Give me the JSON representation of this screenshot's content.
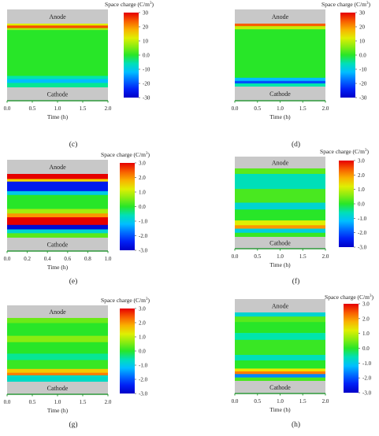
{
  "chart_data": [
    {
      "id": "c",
      "type": "heatmap",
      "caption": "(c)",
      "legend_title": "Space charge (C/m",
      "legend_title_sup": "3",
      "legend_title_end": ")",
      "colorbar_range": [
        -30,
        30
      ],
      "colorbar_ticks": [
        "30",
        "20",
        "10",
        "0.0",
        "-10",
        "-20",
        "-30"
      ],
      "top_label": "Anode",
      "bottom_label": "Cathode",
      "xlabel": "Time (h)",
      "x_ticks": [
        "0.0",
        "0.5",
        "1.0",
        "1.5",
        "2.0"
      ],
      "xlim": [
        0,
        2
      ],
      "bands": [
        {
          "from": 0.0,
          "to": 0.03,
          "v": 12
        },
        {
          "from": 0.03,
          "to": 0.07,
          "v": 25
        },
        {
          "from": 0.07,
          "to": 0.1,
          "v": 8
        },
        {
          "from": 0.1,
          "to": 0.82,
          "v": 0
        },
        {
          "from": 0.82,
          "to": 0.87,
          "v": -5
        },
        {
          "from": 0.87,
          "to": 0.93,
          "v": -12
        },
        {
          "from": 0.93,
          "to": 1.0,
          "v": -4
        }
      ]
    },
    {
      "id": "d",
      "type": "heatmap",
      "caption": "(d)",
      "legend_title": "Space charge (C/m",
      "legend_title_sup": "3",
      "legend_title_end": ")",
      "colorbar_range": [
        -30,
        30
      ],
      "colorbar_ticks": [
        "30",
        "20",
        "10",
        "0.0",
        "-10",
        "-20",
        "-30"
      ],
      "top_label": "Anode",
      "bottom_label": "Cathode",
      "xlabel": "Time (h)",
      "x_ticks": [
        "0.0",
        "0.5",
        "1.0",
        "1.5",
        "2.0"
      ],
      "xlim": [
        0,
        2
      ],
      "bands": [
        {
          "from": 0.0,
          "to": 0.04,
          "v": 24
        },
        {
          "from": 0.04,
          "to": 0.09,
          "v": 10
        },
        {
          "from": 0.09,
          "to": 0.86,
          "v": 0
        },
        {
          "from": 0.86,
          "to": 0.91,
          "v": -12
        },
        {
          "from": 0.91,
          "to": 0.95,
          "v": -20
        },
        {
          "from": 0.95,
          "to": 1.0,
          "v": -5
        }
      ]
    },
    {
      "id": "e",
      "type": "heatmap",
      "caption": "(e)",
      "legend_title": "Space charge (C/m",
      "legend_title_sup": "3",
      "legend_title_end": ")",
      "colorbar_range": [
        -3,
        3
      ],
      "colorbar_ticks": [
        "3.0",
        "2.0",
        "1.0",
        "0.0",
        "-1.0",
        "-2.0",
        "-3.0"
      ],
      "top_label": "Anode",
      "bottom_label": "Cathode",
      "xlabel": "Time (h)",
      "x_ticks": [
        "0.0",
        "0.2",
        "0.4",
        "0.6",
        "0.8",
        "1.0"
      ],
      "xlim": [
        0,
        1
      ],
      "bands": [
        {
          "from": 0.0,
          "to": 0.08,
          "v": 3.0
        },
        {
          "from": 0.08,
          "to": 0.12,
          "v": 1.5
        },
        {
          "from": 0.12,
          "to": 0.27,
          "v": -2.5
        },
        {
          "from": 0.27,
          "to": 0.33,
          "v": -1.0
        },
        {
          "from": 0.33,
          "to": 0.55,
          "v": 0.0
        },
        {
          "from": 0.55,
          "to": 0.62,
          "v": 0.8
        },
        {
          "from": 0.62,
          "to": 0.68,
          "v": 2.0
        },
        {
          "from": 0.68,
          "to": 0.8,
          "v": 3.0
        },
        {
          "from": 0.8,
          "to": 0.87,
          "v": -2.8
        },
        {
          "from": 0.87,
          "to": 0.93,
          "v": -0.8
        },
        {
          "from": 0.93,
          "to": 1.0,
          "v": 0.3
        }
      ]
    },
    {
      "id": "f",
      "type": "heatmap",
      "caption": "(f)",
      "legend_title": "Space charge (C/m",
      "legend_title_sup": "3",
      "legend_title_end": ")",
      "colorbar_range": [
        -3,
        3
      ],
      "colorbar_ticks": [
        "3.0",
        "2.0",
        "1.0",
        "0.0",
        "-1.0",
        "-2.0",
        "-3.0"
      ],
      "top_label": "Anode",
      "bottom_label": "Cathode",
      "xlabel": "Time (h)",
      "x_ticks": [
        "0.0",
        "0.5",
        "1.0",
        "1.5",
        "2.0"
      ],
      "xlim": [
        0,
        2
      ],
      "bands": [
        {
          "from": 0.0,
          "to": 0.08,
          "v": 0.3
        },
        {
          "from": 0.08,
          "to": 0.3,
          "v": -0.6
        },
        {
          "from": 0.3,
          "to": 0.5,
          "v": 0.2
        },
        {
          "from": 0.5,
          "to": 0.6,
          "v": -0.8
        },
        {
          "from": 0.6,
          "to": 0.76,
          "v": 0.0
        },
        {
          "from": 0.76,
          "to": 0.83,
          "v": 1.2
        },
        {
          "from": 0.83,
          "to": 0.88,
          "v": 2.0
        },
        {
          "from": 0.88,
          "to": 0.94,
          "v": -0.9
        },
        {
          "from": 0.94,
          "to": 1.0,
          "v": 0.1
        }
      ]
    },
    {
      "id": "g",
      "type": "heatmap",
      "caption": "(g)",
      "legend_title": "Space charge (C/m",
      "legend_title_sup": "3",
      "legend_title_end": ")",
      "colorbar_range": [
        -3,
        3
      ],
      "colorbar_ticks": [
        "3.0",
        "2.0",
        "1.0",
        "0.0",
        "-1.0",
        "-2.0",
        "-3.0"
      ],
      "top_label": "Anode",
      "bottom_label": "Cathode",
      "xlabel": "Time (h)",
      "x_ticks": [
        "0.0",
        "0.5",
        "1.0",
        "1.5",
        "2.0"
      ],
      "xlim": [
        0,
        2
      ],
      "bands": [
        {
          "from": 0.0,
          "to": 0.08,
          "v": 0.4
        },
        {
          "from": 0.08,
          "to": 0.28,
          "v": 0.0
        },
        {
          "from": 0.28,
          "to": 0.38,
          "v": 0.6
        },
        {
          "from": 0.38,
          "to": 0.56,
          "v": 0.0
        },
        {
          "from": 0.56,
          "to": 0.66,
          "v": -0.4
        },
        {
          "from": 0.66,
          "to": 0.8,
          "v": 0.1
        },
        {
          "from": 0.8,
          "to": 0.86,
          "v": 1.6
        },
        {
          "from": 0.86,
          "to": 0.9,
          "v": 2.2
        },
        {
          "from": 0.9,
          "to": 1.0,
          "v": -0.7
        }
      ]
    },
    {
      "id": "h",
      "type": "heatmap",
      "caption": "(h)",
      "legend_title": "Space charge (C/m",
      "legend_title_sup": "3",
      "legend_title_end": ")",
      "colorbar_range": [
        -3,
        3
      ],
      "colorbar_ticks": [
        "3.0",
        "2.0",
        "1.0",
        "0.0",
        "-1.0",
        "-2.0",
        "-3.0"
      ],
      "top_label": "Anode",
      "bottom_label": "Cathode",
      "xlabel": "Time (h)",
      "x_ticks": [
        "0.0",
        "0.5",
        "1.0",
        "1.5",
        "2.0"
      ],
      "xlim": [
        0,
        2
      ],
      "bands": [
        {
          "from": 0.0,
          "to": 0.06,
          "v": -0.8
        },
        {
          "from": 0.06,
          "to": 0.14,
          "v": 0.3
        },
        {
          "from": 0.14,
          "to": 0.3,
          "v": 0.0
        },
        {
          "from": 0.3,
          "to": 0.4,
          "v": -0.5
        },
        {
          "from": 0.4,
          "to": 0.62,
          "v": 0.1
        },
        {
          "from": 0.62,
          "to": 0.7,
          "v": -0.6
        },
        {
          "from": 0.7,
          "to": 0.82,
          "v": 0.0
        },
        {
          "from": 0.82,
          "to": 0.86,
          "v": 1.4
        },
        {
          "from": 0.86,
          "to": 0.9,
          "v": 2.2
        },
        {
          "from": 0.9,
          "to": 0.95,
          "v": -1.6
        },
        {
          "from": 0.95,
          "to": 1.0,
          "v": 0.2
        }
      ]
    }
  ]
}
